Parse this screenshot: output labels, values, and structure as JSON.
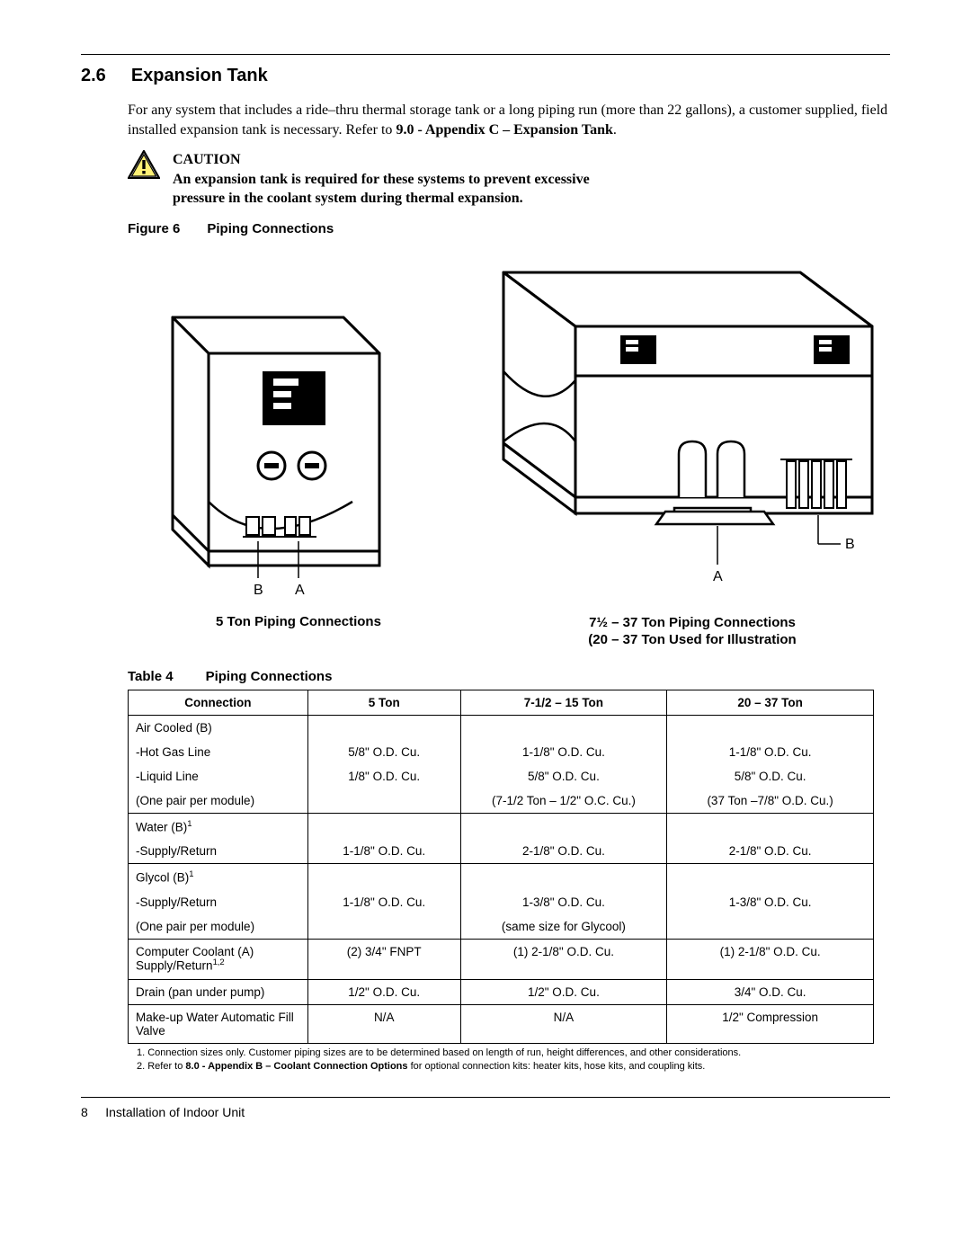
{
  "section": {
    "number": "2.6",
    "title": "Expansion Tank"
  },
  "para": {
    "lead": "For any system that includes a ride–thru thermal storage tank or a long piping run (more than 22 gallons), a customer supplied, field installed expansion tank is necessary. Refer to ",
    "bold_ref": "9.0 - Appendix C – Expansion Tank",
    "period": "."
  },
  "caution": {
    "heading": "CAUTION",
    "body": "An expansion tank is required for these systems to prevent excessive pressure in the coolant system during thermal expansion."
  },
  "figure": {
    "label": "Figure 6",
    "title": "Piping Connections",
    "left_sub": "5 Ton Piping Connections",
    "right_sub_1": "7½ – 37 Ton Piping Connections",
    "right_sub_2": "(20 – 37 Ton Used for Illustration",
    "labels": {
      "A": "A",
      "B": "B"
    }
  },
  "table": {
    "label": "Table 4",
    "title": "Piping Connections",
    "headers": [
      "Connection",
      "5 Ton",
      "7-1/2 – 15 Ton",
      "20 – 37 Ton"
    ],
    "col_widths": [
      "200px",
      "170px",
      "230px",
      "230px"
    ],
    "rows": [
      {
        "cells": [
          "Air Cooled (B)",
          "",
          "",
          ""
        ],
        "no_bottom": true,
        "left0": true
      },
      {
        "cells": [
          "-Hot Gas Line",
          "5/8\" O.D. Cu.",
          "1-1/8\" O.D. Cu.",
          "1-1/8\" O.D. Cu."
        ],
        "no_bottom": true,
        "left0": true
      },
      {
        "cells": [
          "-Liquid Line",
          "1/8\" O.D. Cu.",
          "5/8\" O.D. Cu.",
          "5/8\" O.D. Cu."
        ],
        "no_bottom": true,
        "left0": true
      },
      {
        "cells": [
          "(One pair per module)",
          "",
          "(7-1/2 Ton – 1/2\" O.C. Cu.)",
          "(37 Ton –7/8\" O.D. Cu.)"
        ],
        "left0": true
      },
      {
        "cells": [
          "Water (B)__SUP1__",
          "",
          "",
          ""
        ],
        "no_bottom": true,
        "left0": true
      },
      {
        "cells": [
          "-Supply/Return",
          "1-1/8\" O.D. Cu.",
          "2-1/8\" O.D. Cu.",
          "2-1/8\" O.D. Cu."
        ],
        "left0": true
      },
      {
        "cells": [
          "Glycol (B)__SUP1__",
          "",
          "",
          ""
        ],
        "no_bottom": true,
        "left0": true
      },
      {
        "cells": [
          "-Supply/Return",
          "1-1/8\" O.D. Cu.",
          "1-3/8\" O.D. Cu.",
          "1-3/8\" O.D. Cu."
        ],
        "no_bottom": true,
        "left0": true
      },
      {
        "cells": [
          "(One pair per module)",
          "",
          "(same size for Glycool)",
          ""
        ],
        "left0": true
      },
      {
        "cells": [
          "Computer Coolant (A) Supply/Return__SUP12__",
          "(2) 3/4\" FNPT",
          "(1) 2-1/8\" O.D. Cu.",
          "(1) 2-1/8\" O.D. Cu."
        ],
        "left0": true,
        "supline": true
      },
      {
        "cells": [
          "Drain (pan under pump)",
          "1/2\" O.D. Cu.",
          "1/2\" O.D. Cu.",
          "3/4\" O.D. Cu."
        ],
        "left0": true
      },
      {
        "cells": [
          "Make-up Water Automatic Fill Valve",
          "N/A",
          "N/A",
          "1/2\" Compression"
        ],
        "left0": true
      }
    ]
  },
  "footnotes": {
    "f1_lead": "1. Connection sizes only. Customer piping sizes are to be determined based on length of run, height differences, and other considerations.",
    "f2_lead": "2. Refer to ",
    "f2_bold": "8.0 - Appendix B – Coolant Connection Options",
    "f2_tail": " for optional connection kits: heater kits, hose kits, and coupling kits."
  },
  "footer": {
    "page_num": "8",
    "text": "Installation of Indoor Unit"
  }
}
